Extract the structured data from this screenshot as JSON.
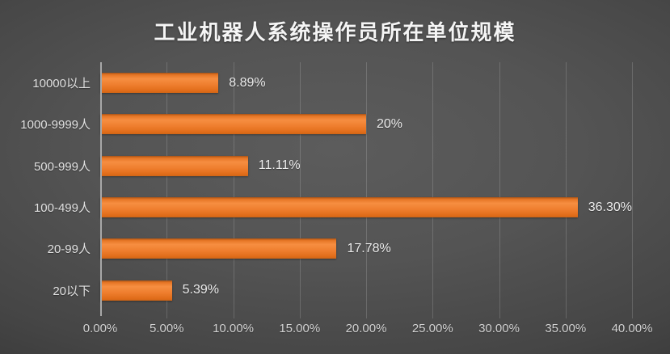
{
  "chart_data": {
    "type": "bar",
    "orientation": "horizontal",
    "title": "工业机器人系统操作员所在单位规模",
    "categories": [
      "10000以上",
      "1000-9999人",
      "500-999人",
      "100-499人",
      "20-99人",
      "20以下"
    ],
    "values": [
      8.89,
      20,
      11.11,
      36.3,
      17.78,
      5.39
    ],
    "value_labels": [
      "8.89%",
      "20%",
      "11.11%",
      "36.30%",
      "17.78%",
      "5.39%"
    ],
    "x_ticks": [
      "0.00%",
      "5.00%",
      "10.00%",
      "15.00%",
      "20.00%",
      "25.00%",
      "30.00%",
      "35.00%",
      "40.00%"
    ],
    "xlim": [
      0,
      40
    ],
    "xlabel": "",
    "ylabel": "",
    "legend": false,
    "gridlines": "vertical",
    "colors": {
      "bar": "#ED7D31",
      "background_center": "#585858",
      "background_edge": "#262626",
      "title_text": "#f5f5f5",
      "label_text": "#e2e2e2",
      "axis_line": "#a8a8a8"
    }
  }
}
